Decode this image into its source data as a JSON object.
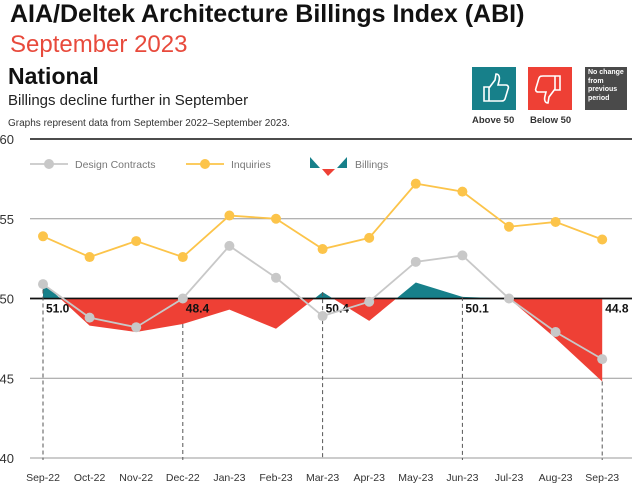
{
  "header": {
    "title": "AIA/Deltek Architecture Billings Index (ABI)",
    "subtitle": "September 2023",
    "region": "National",
    "headline": "Billings decline further in September",
    "note": "Graphs represent data from September 2022–September 2023."
  },
  "key": {
    "above": "Above 50",
    "below": "Below 50",
    "no_change": "No change from previous period",
    "colors": {
      "above": "#17808a",
      "below": "#ee4035",
      "no_change": "#4a4a4a"
    }
  },
  "chart_data": {
    "type": "line",
    "title": "",
    "xlabel": "",
    "ylabel": "",
    "ylim": [
      40,
      60
    ],
    "yticks": [
      "40",
      "45",
      "50",
      "55",
      "60"
    ],
    "categories": [
      "Sep-22",
      "Oct-22",
      "Nov-22",
      "Dec-22",
      "Jan-23",
      "Feb-23",
      "Mar-23",
      "Apr-23",
      "May-23",
      "Jun-23",
      "Jul-23",
      "Aug-23",
      "Sep-23"
    ],
    "legend": "top",
    "series": [
      {
        "name": "Design Contracts",
        "color": "#c8c8c8",
        "values": [
          50.9,
          48.8,
          48.2,
          50.0,
          53.3,
          51.3,
          48.9,
          49.8,
          52.3,
          52.7,
          50.0,
          47.9,
          46.2
        ]
      },
      {
        "name": "Inquiries",
        "color": "#fcc44a",
        "values": [
          53.9,
          52.6,
          53.6,
          52.6,
          55.2,
          55.0,
          53.1,
          53.8,
          57.2,
          56.7,
          54.5,
          54.8,
          53.7
        ]
      },
      {
        "name": "Billings",
        "type": "area",
        "baseline": 50,
        "color_above": "#17808a",
        "color_below": "#ee4035",
        "values": [
          51.0,
          48.3,
          47.9,
          48.4,
          49.3,
          48.1,
          50.4,
          48.6,
          51.0,
          50.1,
          50.0,
          47.5,
          44.8
        ]
      }
    ],
    "data_labels": [
      {
        "category": "Sep-22",
        "text": "51.0"
      },
      {
        "category": "Dec-22",
        "text": "48.4"
      },
      {
        "category": "Mar-23",
        "text": "50.4"
      },
      {
        "category": "Jun-23",
        "text": "50.1"
      },
      {
        "category": "Sep-23",
        "text": "44.8"
      }
    ]
  }
}
